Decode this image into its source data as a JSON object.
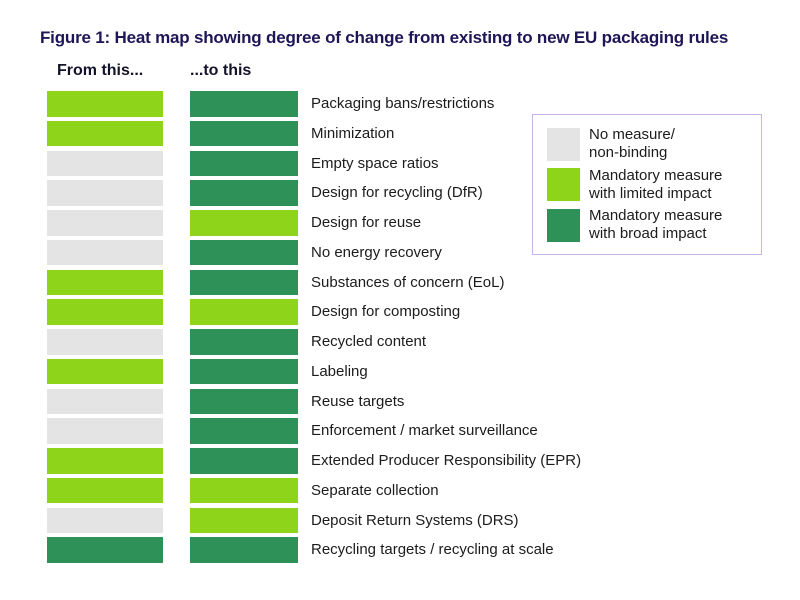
{
  "title": "Figure 1: Heat map showing degree of change from existing to new EU packaging rules",
  "columns": {
    "from": "From this...",
    "to": "...to this"
  },
  "palette": {
    "none": "#e4e4e4",
    "limited": "#8dd41a",
    "broad": "#2e9158"
  },
  "legend_border_color": "#cbb3ea",
  "title_color": "#1e1656",
  "legend": {
    "items": [
      {
        "key": "none",
        "line1": "No measure/",
        "line2": "non-binding"
      },
      {
        "key": "limited",
        "line1": "Mandatory measure",
        "line2": "with limited impact"
      },
      {
        "key": "broad",
        "line1": "Mandatory measure",
        "line2": "with broad impact"
      }
    ]
  },
  "rows": [
    {
      "label": "Packaging bans/restrictions",
      "from": "limited",
      "to": "broad"
    },
    {
      "label": "Minimization",
      "from": "limited",
      "to": "broad"
    },
    {
      "label": "Empty space ratios",
      "from": "none",
      "to": "broad"
    },
    {
      "label": "Design for recycling (DfR)",
      "from": "none",
      "to": "broad"
    },
    {
      "label": "Design for reuse",
      "from": "none",
      "to": "limited"
    },
    {
      "label": "No energy recovery",
      "from": "none",
      "to": "broad"
    },
    {
      "label": "Substances of concern (EoL)",
      "from": "limited",
      "to": "broad"
    },
    {
      "label": "Design for composting",
      "from": "limited",
      "to": "limited"
    },
    {
      "label": "Recycled content",
      "from": "none",
      "to": "broad"
    },
    {
      "label": "Labeling",
      "from": "limited",
      "to": "broad"
    },
    {
      "label": "Reuse targets",
      "from": "none",
      "to": "broad"
    },
    {
      "label": "Enforcement / market surveillance",
      "from": "none",
      "to": "broad"
    },
    {
      "label": "Extended Producer Responsibility (EPR)",
      "from": "limited",
      "to": "broad"
    },
    {
      "label": "Separate collection",
      "from": "limited",
      "to": "limited"
    },
    {
      "label": "Deposit Return Systems (DRS)",
      "from": "none",
      "to": "limited"
    },
    {
      "label": "Recycling targets / recycling at scale",
      "from": "broad",
      "to": "broad"
    }
  ],
  "chart_data": {
    "type": "heatmap",
    "title": "Figure 1: Heat map showing degree of change from existing to new EU packaging rules",
    "columns": [
      "From this...",
      "...to this"
    ],
    "categories": [
      "Packaging bans/restrictions",
      "Minimization",
      "Empty space ratios",
      "Design for recycling (DfR)",
      "Design for reuse",
      "No energy recovery",
      "Substances of concern (EoL)",
      "Design for composting",
      "Recycled content",
      "Labeling",
      "Reuse targets",
      "Enforcement / market surveillance",
      "Extended Producer Responsibility (EPR)",
      "Separate collection",
      "Deposit Return Systems (DRS)",
      "Recycling targets / recycling at scale"
    ],
    "values": [
      [
        "limited",
        "broad"
      ],
      [
        "limited",
        "broad"
      ],
      [
        "none",
        "broad"
      ],
      [
        "none",
        "broad"
      ],
      [
        "none",
        "limited"
      ],
      [
        "none",
        "broad"
      ],
      [
        "limited",
        "broad"
      ],
      [
        "limited",
        "limited"
      ],
      [
        "none",
        "broad"
      ],
      [
        "limited",
        "broad"
      ],
      [
        "none",
        "broad"
      ],
      [
        "none",
        "broad"
      ],
      [
        "limited",
        "broad"
      ],
      [
        "limited",
        "limited"
      ],
      [
        "none",
        "limited"
      ],
      [
        "broad",
        "broad"
      ]
    ],
    "scale": {
      "none": "No measure/non-binding",
      "limited": "Mandatory measure with limited impact",
      "broad": "Mandatory measure with broad impact"
    },
    "colors": {
      "none": "#e4e4e4",
      "limited": "#8dd41a",
      "broad": "#2e9158"
    },
    "legend_position": "right",
    "grid": false
  }
}
